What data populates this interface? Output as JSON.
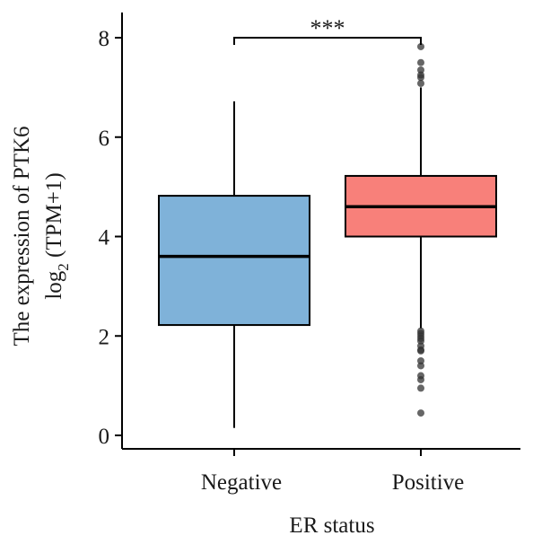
{
  "chart_data": {
    "type": "box",
    "title": "",
    "xlabel": "ER status",
    "ylabel_line1": "The expression of PTK6",
    "ylabel_line2_prefix": "log",
    "ylabel_line2_sub": "2",
    "ylabel_line2_suffix": " (TPM+1)",
    "ylim": [
      0,
      8.4
    ],
    "yticks": [
      "0",
      "2",
      "4",
      "6",
      "8"
    ],
    "ytick_values": [
      0,
      2,
      4,
      6,
      8
    ],
    "categories": [
      "Negative",
      "Positive"
    ],
    "boxes": [
      {
        "name": "Negative",
        "color": "#7fb2d9",
        "whisker_low": 0.15,
        "q1": 2.22,
        "median": 3.6,
        "q3": 4.82,
        "whisker_high": 6.72,
        "outliers": []
      },
      {
        "name": "Positive",
        "color": "#f8807a",
        "whisker_low": 2.15,
        "q1": 4.0,
        "median": 4.6,
        "q3": 5.22,
        "whisker_high": 7.0,
        "outliers": [
          7.82,
          7.5,
          7.35,
          7.25,
          7.2,
          7.08,
          2.1,
          2.05,
          2.0,
          1.95,
          1.9,
          1.8,
          1.72,
          1.7,
          1.5,
          1.4,
          1.2,
          1.12,
          0.95,
          0.45
        ]
      }
    ],
    "significance": {
      "label": "***",
      "between": [
        "Negative",
        "Positive"
      ],
      "y": 8.0
    }
  }
}
